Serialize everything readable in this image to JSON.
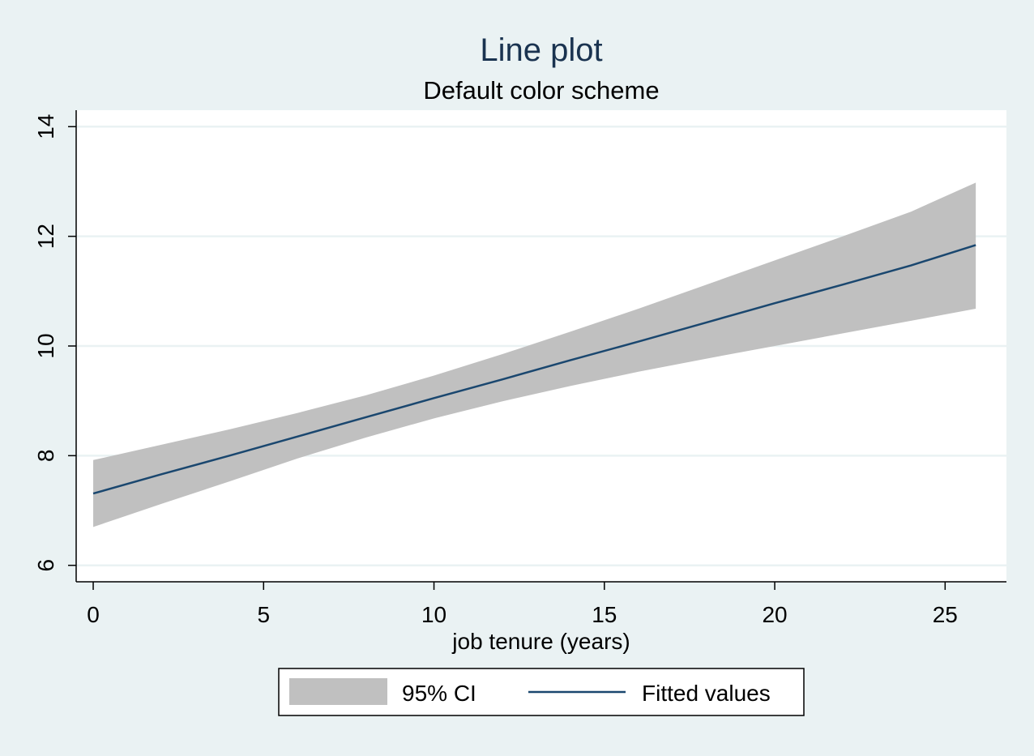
{
  "chart_data": {
    "type": "area",
    "title": "Line plot",
    "subtitle": "Default color scheme",
    "xlabel": "job tenure (years)",
    "ylabel": "",
    "xlim": [
      -0.5,
      26.8
    ],
    "ylim": [
      5.7,
      14.3
    ],
    "xticks": [
      0,
      5,
      10,
      15,
      20,
      25
    ],
    "yticks": [
      6,
      8,
      10,
      12,
      14
    ],
    "grid": "horizontal",
    "legend_position": "bottom",
    "colors": {
      "band": "#c0c0c0",
      "line": "#1a476f",
      "background": "#eaf2f3",
      "plot_area": "#ffffff",
      "grid": "#eaf2f3"
    },
    "x": [
      0,
      2,
      4,
      6,
      8,
      10,
      12,
      14,
      16,
      18,
      20,
      22,
      24,
      25.9
    ],
    "series": [
      {
        "name": "95% CI",
        "kind": "band",
        "lower": [
          6.7,
          7.12,
          7.53,
          7.95,
          8.33,
          8.68,
          8.99,
          9.27,
          9.53,
          9.77,
          10.0,
          10.23,
          10.46,
          10.68
        ],
        "upper": [
          7.92,
          8.2,
          8.48,
          8.78,
          9.1,
          9.46,
          9.85,
          10.26,
          10.68,
          11.12,
          11.56,
          12.0,
          12.45,
          12.98
        ]
      },
      {
        "name": "Fitted values",
        "kind": "line",
        "values": [
          7.31,
          7.66,
          8.0,
          8.35,
          8.7,
          9.05,
          9.39,
          9.74,
          10.08,
          10.43,
          10.78,
          11.12,
          11.47,
          11.84
        ]
      }
    ]
  }
}
